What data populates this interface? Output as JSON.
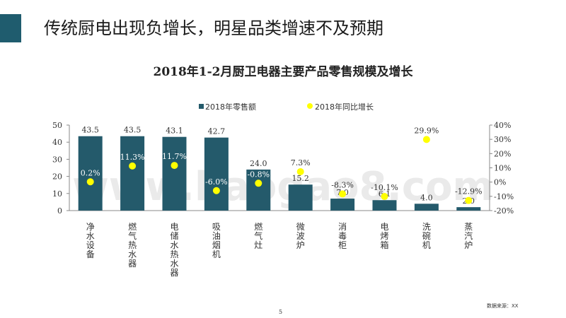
{
  "slide": {
    "title": "传统厨电出现负增长，明星品类增速不及预期",
    "page_number": "5",
    "source": "数据来源：XX"
  },
  "colors": {
    "accent": "#1f5c6e",
    "bar": "#245a6b",
    "growth_marker": "#ffff00"
  },
  "chart_data": {
    "type": "bar",
    "title": "2018年1-2月厨卫电器主要产品零售规模及增长",
    "categories": [
      "净水设备",
      "燃气热水器",
      "电储水热水器",
      "吸油烟机",
      "燃气灶",
      "微波炉",
      "消毒柜",
      "电烤箱",
      "洗碗机",
      "蒸汽炉"
    ],
    "series": [
      {
        "name": "2018年零售额",
        "kind": "bar",
        "axis": "left",
        "values": [
          43.5,
          43.5,
          43.1,
          42.7,
          24.0,
          15.2,
          7.0,
          6.1,
          4.0,
          2.0
        ],
        "labels": [
          "43.5",
          "43.5",
          "43.1",
          "42.7",
          "24.0",
          "15.2",
          "7.0",
          "6.1",
          "4.0",
          "2.0"
        ]
      },
      {
        "name": "2018年同比增长",
        "kind": "scatter",
        "axis": "right",
        "values": [
          0.2,
          11.3,
          11.7,
          -6.0,
          -0.8,
          7.3,
          -8.3,
          -10.1,
          29.9,
          -12.9
        ],
        "labels": [
          "0.2%",
          "11.3%",
          "11.7%",
          "-6.0%",
          "-0.8%",
          "7.3%",
          "-8.3%",
          "-10.1%",
          "29.9%",
          "-12.9%"
        ]
      }
    ],
    "y_left": {
      "min": 0,
      "max": 50,
      "ticks": [
        "0",
        "10",
        "20",
        "30",
        "40",
        "50"
      ]
    },
    "y_right": {
      "min": -20,
      "max": 40,
      "ticks": [
        "-20%",
        "-10%",
        "0%",
        "10%",
        "20%",
        "30%",
        "40%"
      ]
    },
    "legend": "top-center",
    "grid": false,
    "watermark": "www.baogao8.com"
  }
}
